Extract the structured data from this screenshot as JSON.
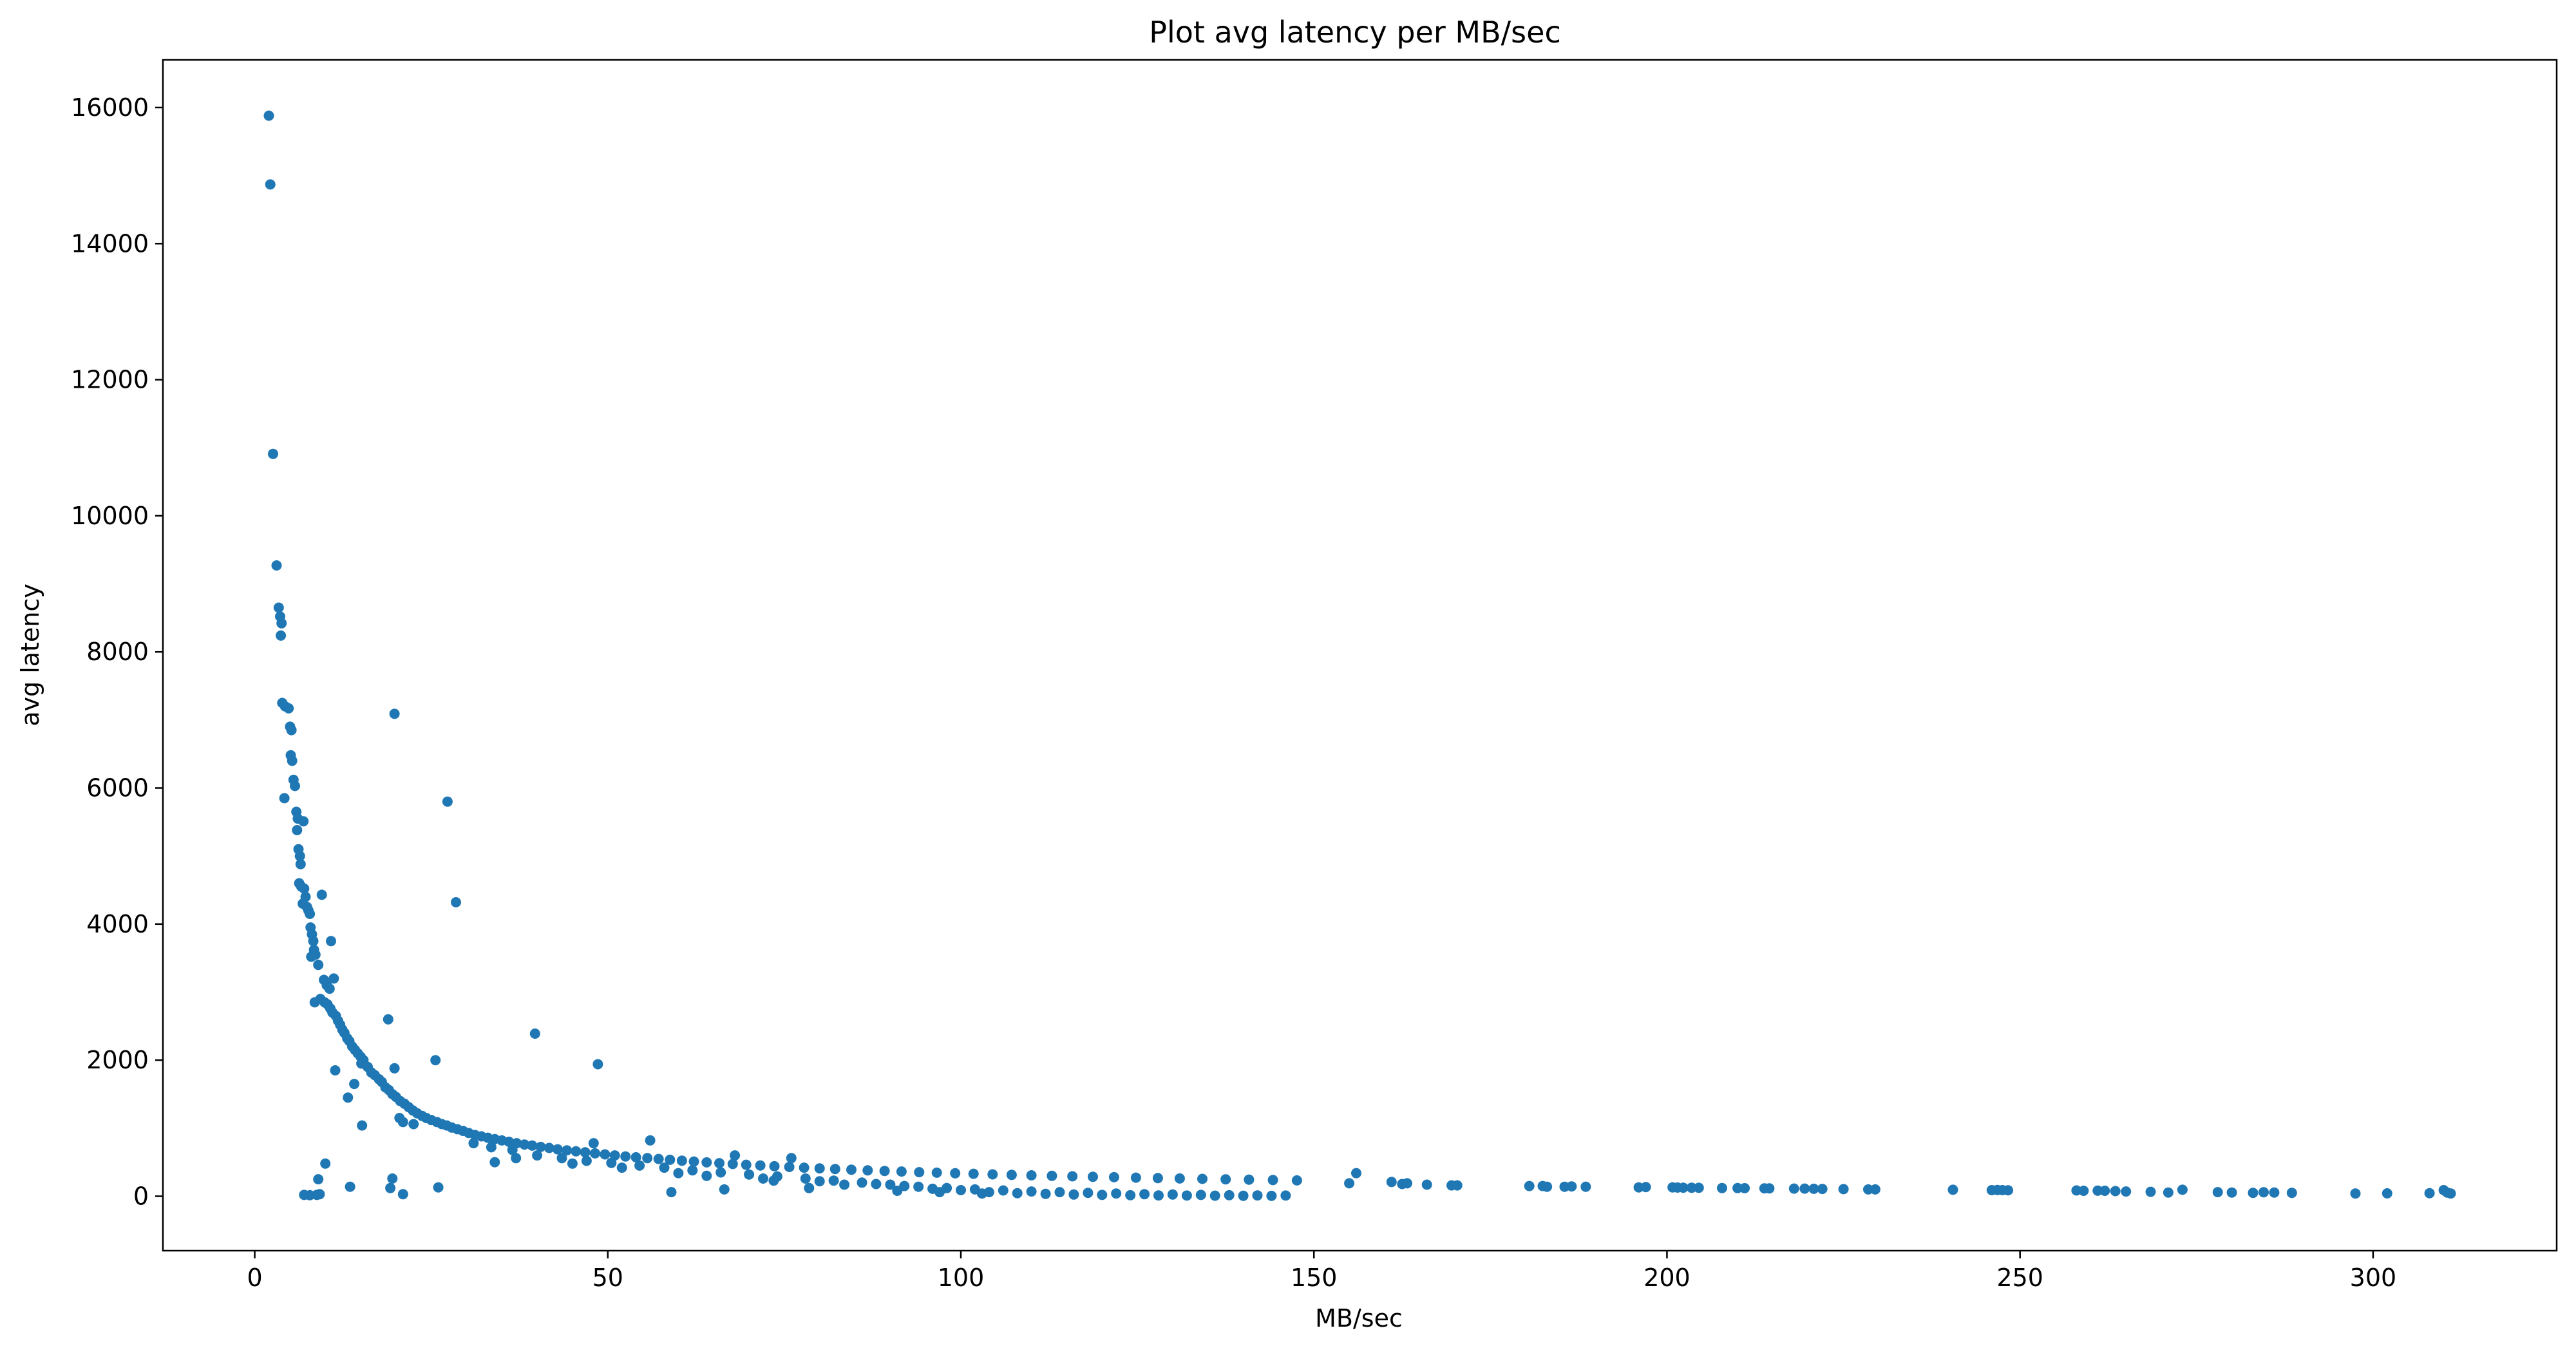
{
  "chart_data": {
    "type": "scatter",
    "title": "Plot avg latency per MB/sec",
    "xlabel": "MB/sec",
    "ylabel": "avg latency",
    "xlim": [
      -13,
      326
    ],
    "ylim": [
      -800,
      16700
    ],
    "xticks": [
      0,
      50,
      100,
      150,
      200,
      250,
      300
    ],
    "yticks": [
      0,
      2000,
      4000,
      6000,
      8000,
      10000,
      12000,
      14000,
      16000
    ],
    "grid": false,
    "legend": "none",
    "color": "#1f77b4",
    "series": [
      {
        "points": [
          [
            2.0,
            15880
          ],
          [
            2.2,
            14870
          ],
          [
            2.6,
            10910
          ],
          [
            3.1,
            9270
          ],
          [
            3.4,
            8650
          ],
          [
            3.6,
            8520
          ],
          [
            3.8,
            8420
          ],
          [
            3.7,
            8240
          ],
          [
            3.9,
            7250
          ],
          [
            4.3,
            7200
          ],
          [
            4.8,
            7170
          ],
          [
            4.2,
            5850
          ],
          [
            5.0,
            6900
          ],
          [
            5.2,
            6850
          ],
          [
            5.1,
            6480
          ],
          [
            5.3,
            6400
          ],
          [
            5.5,
            6120
          ],
          [
            5.7,
            6030
          ],
          [
            5.9,
            5650
          ],
          [
            6.1,
            5550
          ],
          [
            6.0,
            5380
          ],
          [
            6.9,
            5510
          ],
          [
            6.2,
            5100
          ],
          [
            6.4,
            5000
          ],
          [
            6.5,
            4880
          ],
          [
            6.3,
            4600
          ],
          [
            6.6,
            4550
          ],
          [
            7.0,
            4520
          ],
          [
            7.2,
            4400
          ],
          [
            7.4,
            4250
          ],
          [
            6.8,
            4300
          ],
          [
            7.6,
            4200
          ],
          [
            7.8,
            4150
          ],
          [
            7.9,
            3950
          ],
          [
            8.1,
            3850
          ],
          [
            8.3,
            3750
          ],
          [
            8.4,
            3620
          ],
          [
            8.0,
            3520
          ],
          [
            8.6,
            3550
          ],
          [
            9.0,
            3400
          ],
          [
            9.5,
            4430
          ],
          [
            10.8,
            3750
          ],
          [
            9.8,
            3180
          ],
          [
            10.2,
            3100
          ],
          [
            10.6,
            3050
          ],
          [
            11.2,
            3200
          ],
          [
            8.5,
            2850
          ],
          [
            9.3,
            2900
          ],
          [
            9.9,
            2850
          ],
          [
            10.3,
            2820
          ],
          [
            10.7,
            2760
          ],
          [
            11.0,
            2700
          ],
          [
            11.5,
            2650
          ],
          [
            11.8,
            2580
          ],
          [
            12.1,
            2520
          ],
          [
            12.4,
            2450
          ],
          [
            12.7,
            2400
          ],
          [
            13.1,
            2320
          ],
          [
            13.4,
            2280
          ],
          [
            13.8,
            2200
          ],
          [
            14.2,
            2150
          ],
          [
            14.6,
            2100
          ],
          [
            15.0,
            2050
          ],
          [
            15.4,
            2000
          ],
          [
            11.4,
            1850
          ],
          [
            13.2,
            1450
          ],
          [
            14.1,
            1650
          ],
          [
            15.1,
            1950
          ],
          [
            16.0,
            1900
          ],
          [
            16.5,
            1820
          ],
          [
            17.0,
            1780
          ],
          [
            17.6,
            1720
          ],
          [
            18.0,
            1680
          ],
          [
            18.5,
            1600
          ],
          [
            19.0,
            1560
          ],
          [
            19.5,
            1500
          ],
          [
            20.0,
            1460
          ],
          [
            20.6,
            1400
          ],
          [
            21.2,
            1360
          ],
          [
            21.8,
            1310
          ],
          [
            22.4,
            1260
          ],
          [
            23.0,
            1220
          ],
          [
            23.7,
            1180
          ],
          [
            24.3,
            1150
          ],
          [
            15.2,
            1040
          ],
          [
            20.5,
            1150
          ],
          [
            21.0,
            1090
          ],
          [
            22.5,
            1060
          ],
          [
            19.8,
            1880
          ],
          [
            18.9,
            2600
          ],
          [
            25.6,
            2000
          ],
          [
            19.8,
            7090
          ],
          [
            27.3,
            5800
          ],
          [
            28.5,
            4320
          ],
          [
            39.7,
            2390
          ],
          [
            48.6,
            1940
          ],
          [
            25.0,
            1120
          ],
          [
            25.8,
            1090
          ],
          [
            26.5,
            1060
          ],
          [
            27.2,
            1040
          ],
          [
            27.9,
            1010
          ],
          [
            28.7,
            985
          ],
          [
            29.5,
            960
          ],
          [
            30.3,
            930
          ],
          [
            31.2,
            900
          ],
          [
            32.1,
            880
          ],
          [
            33.0,
            860
          ],
          [
            34.0,
            840
          ],
          [
            35.0,
            820
          ],
          [
            36.0,
            800
          ],
          [
            37.1,
            780
          ],
          [
            38.2,
            760
          ],
          [
            39.3,
            745
          ],
          [
            40.5,
            725
          ],
          [
            41.7,
            710
          ],
          [
            42.9,
            690
          ],
          [
            44.2,
            675
          ],
          [
            45.5,
            660
          ],
          [
            46.8,
            645
          ],
          [
            48.2,
            630
          ],
          [
            49.6,
            615
          ],
          [
            51.0,
            600
          ],
          [
            52.5,
            585
          ],
          [
            54.0,
            572
          ],
          [
            55.6,
            560
          ],
          [
            57.2,
            548
          ],
          [
            58.8,
            535
          ],
          [
            60.5,
            522
          ],
          [
            62.2,
            510
          ],
          [
            64.0,
            498
          ],
          [
            65.8,
            486
          ],
          [
            67.7,
            474
          ],
          [
            69.6,
            463
          ],
          [
            71.6,
            452
          ],
          [
            73.6,
            441
          ],
          [
            75.7,
            430
          ],
          [
            77.8,
            420
          ],
          [
            80.0,
            410
          ],
          [
            82.2,
            400
          ],
          [
            84.5,
            390
          ],
          [
            86.8,
            380
          ],
          [
            89.2,
            372
          ],
          [
            91.6,
            363
          ],
          [
            94.1,
            354
          ],
          [
            96.6,
            346
          ],
          [
            99.2,
            338
          ],
          [
            101.8,
            330
          ],
          [
            104.5,
            322
          ],
          [
            107.2,
            314
          ],
          [
            110.0,
            307
          ],
          [
            112.9,
            300
          ],
          [
            115.8,
            293
          ],
          [
            118.7,
            286
          ],
          [
            121.7,
            280
          ],
          [
            124.8,
            273
          ],
          [
            127.9,
            267
          ],
          [
            131.0,
            261
          ],
          [
            134.2,
            255
          ],
          [
            137.5,
            249
          ],
          [
            140.8,
            244
          ],
          [
            144.2,
            238
          ],
          [
            147.6,
            233
          ],
          [
            31.0,
            780
          ],
          [
            33.5,
            720
          ],
          [
            36.5,
            680
          ],
          [
            40.0,
            600
          ],
          [
            43.5,
            560
          ],
          [
            47.0,
            520
          ],
          [
            50.5,
            490
          ],
          [
            54.5,
            450
          ],
          [
            58.0,
            420
          ],
          [
            62.0,
            380
          ],
          [
            66.0,
            350
          ],
          [
            70.0,
            320
          ],
          [
            74.0,
            290
          ],
          [
            78.0,
            260
          ],
          [
            82.0,
            230
          ],
          [
            86.0,
            200
          ],
          [
            90.0,
            170
          ],
          [
            94.0,
            140
          ],
          [
            98.0,
            120
          ],
          [
            102.0,
            100
          ],
          [
            106.0,
            85
          ],
          [
            110.0,
            70
          ],
          [
            114.0,
            60
          ],
          [
            118.0,
            50
          ],
          [
            122.0,
            40
          ],
          [
            126.0,
            30
          ],
          [
            130.0,
            25
          ],
          [
            134.0,
            20
          ],
          [
            138.0,
            15
          ],
          [
            142.0,
            12
          ],
          [
            146.0,
            10
          ],
          [
            56.0,
            820
          ],
          [
            48.0,
            780
          ],
          [
            76.0,
            560
          ],
          [
            68.0,
            600
          ],
          [
            34.0,
            500
          ],
          [
            37.0,
            560
          ],
          [
            45.0,
            480
          ],
          [
            52.0,
            420
          ],
          [
            60.0,
            340
          ],
          [
            64.0,
            300
          ],
          [
            72.0,
            260
          ],
          [
            80.0,
            220
          ],
          [
            88.0,
            180
          ],
          [
            92.0,
            150
          ],
          [
            96.0,
            110
          ],
          [
            100.0,
            90
          ],
          [
            104.0,
            60
          ],
          [
            108.0,
            45
          ],
          [
            112.0,
            35
          ],
          [
            116.0,
            25
          ],
          [
            120.0,
            20
          ],
          [
            124.0,
            15
          ],
          [
            128.0,
            12
          ],
          [
            132.0,
            10
          ],
          [
            136.0,
            8
          ],
          [
            140.0,
            6
          ],
          [
            144.0,
            5
          ],
          [
            59.0,
            60
          ],
          [
            66.5,
            100
          ],
          [
            73.5,
            230
          ],
          [
            78.5,
            120
          ],
          [
            83.5,
            170
          ],
          [
            91.0,
            80
          ],
          [
            97.0,
            60
          ],
          [
            103.0,
            40
          ],
          [
            7.0,
            20
          ],
          [
            7.8,
            15
          ],
          [
            8.8,
            20
          ],
          [
            9.2,
            30
          ],
          [
            9.0,
            250
          ],
          [
            10.0,
            480
          ],
          [
            13.5,
            140
          ],
          [
            19.2,
            120
          ],
          [
            19.5,
            260
          ],
          [
            21.0,
            30
          ],
          [
            26.0,
            130
          ],
          [
            155.0,
            190
          ],
          [
            156.0,
            340
          ],
          [
            161.0,
            210
          ],
          [
            162.5,
            180
          ],
          [
            163.2,
            190
          ],
          [
            166.0,
            170
          ],
          [
            169.5,
            160
          ],
          [
            170.3,
            160
          ],
          [
            180.5,
            150
          ],
          [
            182.4,
            150
          ],
          [
            183.0,
            140
          ],
          [
            185.5,
            140
          ],
          [
            186.5,
            145
          ],
          [
            188.5,
            140
          ],
          [
            196.0,
            130
          ],
          [
            197.0,
            135
          ],
          [
            200.8,
            130
          ],
          [
            201.5,
            128
          ],
          [
            202.3,
            126
          ],
          [
            203.5,
            125
          ],
          [
            204.5,
            124
          ],
          [
            207.8,
            120
          ],
          [
            210.0,
            120
          ],
          [
            211.0,
            118
          ],
          [
            213.8,
            116
          ],
          [
            214.5,
            115
          ],
          [
            218.0,
            112
          ],
          [
            219.5,
            112
          ],
          [
            220.8,
            110
          ],
          [
            222.0,
            108
          ],
          [
            225.0,
            105
          ],
          [
            228.5,
            100
          ],
          [
            229.5,
            100
          ],
          [
            240.5,
            95
          ],
          [
            246.0,
            90
          ],
          [
            246.8,
            92
          ],
          [
            247.5,
            90
          ],
          [
            248.3,
            88
          ],
          [
            258.0,
            85
          ],
          [
            259.0,
            80
          ],
          [
            261.0,
            82
          ],
          [
            262.0,
            80
          ],
          [
            263.5,
            75
          ],
          [
            265.0,
            70
          ],
          [
            268.5,
            65
          ],
          [
            271.0,
            55
          ],
          [
            273.0,
            95
          ],
          [
            278.0,
            60
          ],
          [
            280.0,
            55
          ],
          [
            283.0,
            50
          ],
          [
            284.5,
            58
          ],
          [
            286.0,
            55
          ],
          [
            288.5,
            50
          ],
          [
            297.5,
            40
          ],
          [
            302.0,
            42
          ],
          [
            308.0,
            45
          ],
          [
            310.0,
            90
          ],
          [
            310.5,
            55
          ],
          [
            311.0,
            40
          ]
        ]
      }
    ]
  }
}
